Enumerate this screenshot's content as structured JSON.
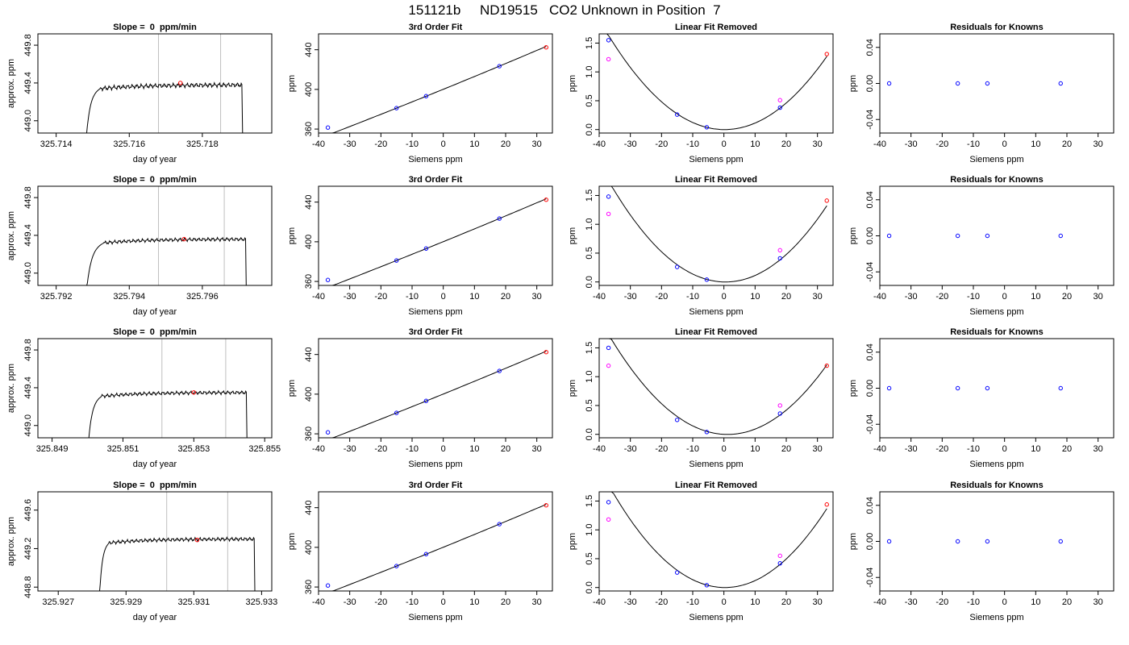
{
  "suptitle": "151121b     ND19515   CO2 Unknown in Position  7",
  "colors": {
    "known": "#0000ff",
    "unknown": "#ff0000",
    "alt": "#ff00ff",
    "line": "#000000",
    "vline": "#bfbfbf"
  },
  "chart_data": [
    {
      "type": "line",
      "title": "Slope =  0  ppm/min",
      "xlabel": "day of year",
      "ylabel": "approx. ppm",
      "xlim": [
        325.7135,
        325.7199
      ],
      "ylim": [
        448.87,
        449.92
      ],
      "xticks": [
        "325.714",
        "325.716",
        "325.718"
      ],
      "xtick_values": [
        325.714,
        325.716,
        325.718
      ],
      "yticks": [
        "449.0",
        "449.4",
        "449.8"
      ],
      "ytick_values": [
        449.0,
        449.4,
        449.8
      ],
      "trace": {
        "x_start": 325.7148,
        "x_end": 325.7191,
        "rise_end": 325.7152,
        "level": 449.38,
        "amp": 0.025
      },
      "vlines": [
        325.7168,
        325.7185
      ],
      "points": [
        {
          "x": 325.7174,
          "y": 449.4,
          "color": "unknown"
        }
      ]
    },
    {
      "type": "scatter",
      "title": "3rd Order Fit",
      "xlabel": "Siemens ppm",
      "ylabel": "ppm",
      "xlim": [
        -40,
        35
      ],
      "ylim": [
        356,
        456
      ],
      "xticks": [
        "-40",
        "-30",
        "-20",
        "-10",
        "0",
        "10",
        "20",
        "30"
      ],
      "xtick_values": [
        -40,
        -30,
        -20,
        -10,
        0,
        10,
        20,
        30
      ],
      "yticks": [
        "360",
        "400",
        "440"
      ],
      "ytick_values": [
        360,
        400,
        440
      ],
      "curve": {
        "kind": "poly",
        "coef": [
          400.1,
          1.28,
          0.0009
        ],
        "x0": -37,
        "x1": 33
      },
      "points": [
        {
          "x": -37,
          "y": 361.5,
          "color": "known"
        },
        {
          "x": -15,
          "y": 381.1,
          "color": "known"
        },
        {
          "x": -5.5,
          "y": 393.2,
          "color": "known"
        },
        {
          "x": 18,
          "y": 423.4,
          "color": "known"
        },
        {
          "x": 33,
          "y": 442.4,
          "color": "unknown"
        }
      ]
    },
    {
      "type": "scatter",
      "title": "Linear Fit Removed",
      "xlabel": "Siemens ppm",
      "ylabel": "ppm",
      "xlim": [
        -40,
        35
      ],
      "ylim": [
        -0.06,
        1.66
      ],
      "xticks": [
        "-40",
        "-30",
        "-20",
        "-10",
        "0",
        "10",
        "20",
        "30"
      ],
      "xtick_values": [
        -40,
        -30,
        -20,
        -10,
        0,
        10,
        20,
        30
      ],
      "yticks": [
        "0.0",
        "0.5",
        "1.0",
        "1.5"
      ],
      "ytick_values": [
        0,
        0.5,
        1,
        1.5
      ],
      "curve": {
        "kind": "poly",
        "coef": [
          0,
          -0.0005,
          0.00118
        ],
        "x0": -38.2,
        "x1": 33
      },
      "points": [
        {
          "x": -37,
          "y": 1.55,
          "color": "known"
        },
        {
          "x": -37,
          "y": 1.22,
          "color": "alt"
        },
        {
          "x": -15,
          "y": 0.26,
          "color": "known"
        },
        {
          "x": -5.5,
          "y": 0.04,
          "color": "known"
        },
        {
          "x": 18,
          "y": 0.38,
          "color": "known"
        },
        {
          "x": 18,
          "y": 0.51,
          "color": "alt"
        },
        {
          "x": 33,
          "y": 1.31,
          "color": "unknown"
        }
      ]
    },
    {
      "type": "scatter",
      "title": "Residuals for Knowns",
      "xlabel": "Siemens ppm",
      "ylabel": "ppm",
      "xlim": [
        -40,
        35
      ],
      "ylim": [
        -0.055,
        0.055
      ],
      "xticks": [
        "-40",
        "-30",
        "-20",
        "-10",
        "0",
        "10",
        "20",
        "30"
      ],
      "xtick_values": [
        -40,
        -30,
        -20,
        -10,
        0,
        10,
        20,
        30
      ],
      "yticks": [
        "-0.04",
        "0.00",
        "0.04"
      ],
      "ytick_values": [
        -0.04,
        0,
        0.04
      ],
      "points": [
        {
          "x": -37,
          "y": 0,
          "color": "known"
        },
        {
          "x": -15,
          "y": 0,
          "color": "known"
        },
        {
          "x": -5.5,
          "y": 0,
          "color": "known"
        },
        {
          "x": 18,
          "y": 0,
          "color": "known"
        }
      ]
    },
    {
      "type": "line",
      "title": "Slope =  0  ppm/min",
      "xlabel": "day of year",
      "ylabel": "approx. ppm",
      "xlim": [
        325.7915,
        325.7979
      ],
      "ylim": [
        448.87,
        449.92
      ],
      "xticks": [
        "325.792",
        "325.794",
        "325.796"
      ],
      "xtick_values": [
        325.792,
        325.794,
        325.796
      ],
      "yticks": [
        "449.0",
        "449.4",
        "449.8"
      ],
      "ytick_values": [
        449.0,
        449.4,
        449.8
      ],
      "trace": {
        "x_start": 325.7928,
        "x_end": 325.7972,
        "rise_end": 325.7933,
        "level": 449.36,
        "amp": 0.02
      },
      "vlines": [
        325.7948,
        325.7966
      ],
      "points": [
        {
          "x": 325.7955,
          "y": 449.36,
          "color": "unknown"
        }
      ]
    },
    {
      "type": "scatter",
      "title": "3rd Order Fit",
      "xlabel": "Siemens ppm",
      "ylabel": "ppm",
      "xlim": [
        -40,
        35
      ],
      "ylim": [
        356,
        456
      ],
      "xticks": [
        "-40",
        "-30",
        "-20",
        "-10",
        "0",
        "10",
        "20",
        "30"
      ],
      "xtick_values": [
        -40,
        -30,
        -20,
        -10,
        0,
        10,
        20,
        30
      ],
      "yticks": [
        "360",
        "400",
        "440"
      ],
      "ytick_values": [
        360,
        400,
        440
      ],
      "curve": {
        "kind": "poly",
        "coef": [
          400.1,
          1.28,
          0.0009
        ],
        "x0": -37,
        "x1": 33
      },
      "points": [
        {
          "x": -37,
          "y": 361.5,
          "color": "known"
        },
        {
          "x": -15,
          "y": 381.1,
          "color": "known"
        },
        {
          "x": -5.5,
          "y": 393.2,
          "color": "known"
        },
        {
          "x": 18,
          "y": 423.4,
          "color": "known"
        },
        {
          "x": 33,
          "y": 442.4,
          "color": "unknown"
        }
      ]
    },
    {
      "type": "scatter",
      "title": "Linear Fit Removed",
      "xlabel": "Siemens ppm",
      "ylabel": "ppm",
      "xlim": [
        -40,
        35
      ],
      "ylim": [
        -0.06,
        1.66
      ],
      "xticks": [
        "-40",
        "-30",
        "-20",
        "-10",
        "0",
        "10",
        "20",
        "30"
      ],
      "xtick_values": [
        -40,
        -30,
        -20,
        -10,
        0,
        10,
        20,
        30
      ],
      "yticks": [
        "0.0",
        "0.5",
        "1.0",
        "1.5"
      ],
      "ytick_values": [
        0,
        0.5,
        1,
        1.5
      ],
      "curve": {
        "kind": "poly",
        "coef": [
          0,
          -0.0012,
          0.00125
        ],
        "x0": -38.2,
        "x1": 33
      },
      "points": [
        {
          "x": -37,
          "y": 1.48,
          "color": "known"
        },
        {
          "x": -37,
          "y": 1.18,
          "color": "alt"
        },
        {
          "x": -15,
          "y": 0.26,
          "color": "known"
        },
        {
          "x": -5.5,
          "y": 0.04,
          "color": "known"
        },
        {
          "x": 18,
          "y": 0.41,
          "color": "known"
        },
        {
          "x": 18,
          "y": 0.55,
          "color": "alt"
        },
        {
          "x": 33,
          "y": 1.41,
          "color": "unknown"
        }
      ]
    },
    {
      "type": "scatter",
      "title": "Residuals for Knowns",
      "xlabel": "Siemens ppm",
      "ylabel": "ppm",
      "xlim": [
        -40,
        35
      ],
      "ylim": [
        -0.055,
        0.055
      ],
      "xticks": [
        "-40",
        "-30",
        "-20",
        "-10",
        "0",
        "10",
        "20",
        "30"
      ],
      "xtick_values": [
        -40,
        -30,
        -20,
        -10,
        0,
        10,
        20,
        30
      ],
      "yticks": [
        "-0.04",
        "0.00",
        "0.04"
      ],
      "ytick_values": [
        -0.04,
        0,
        0.04
      ],
      "points": [
        {
          "x": -37,
          "y": 0,
          "color": "known"
        },
        {
          "x": -15,
          "y": 0,
          "color": "known"
        },
        {
          "x": -5.5,
          "y": 0,
          "color": "known"
        },
        {
          "x": 18,
          "y": 0,
          "color": "known"
        }
      ]
    },
    {
      "type": "line",
      "title": "Slope =  0  ppm/min",
      "xlabel": "day of year",
      "ylabel": "approx. ppm",
      "xlim": [
        325.8486,
        325.8552
      ],
      "ylim": [
        448.87,
        449.92
      ],
      "xticks": [
        "325.849",
        "325.851",
        "325.853",
        "325.855"
      ],
      "xtick_values": [
        325.849,
        325.851,
        325.853,
        325.855
      ],
      "yticks": [
        "449.0",
        "449.4",
        "449.8"
      ],
      "ytick_values": [
        449.0,
        449.4,
        449.8
      ],
      "trace": {
        "x_start": 325.85,
        "x_end": 325.8545,
        "rise_end": 325.8504,
        "level": 449.35,
        "amp": 0.02
      },
      "vlines": [
        325.8521,
        325.8539
      ],
      "points": [
        {
          "x": 325.853,
          "y": 449.35,
          "color": "unknown"
        }
      ]
    },
    {
      "type": "scatter",
      "title": "3rd Order Fit",
      "xlabel": "Siemens ppm",
      "ylabel": "ppm",
      "xlim": [
        -40,
        35
      ],
      "ylim": [
        356,
        456
      ],
      "xticks": [
        "-40",
        "-30",
        "-20",
        "-10",
        "0",
        "10",
        "20",
        "30"
      ],
      "xtick_values": [
        -40,
        -30,
        -20,
        -10,
        0,
        10,
        20,
        30
      ],
      "yticks": [
        "360",
        "400",
        "440"
      ],
      "ytick_values": [
        360,
        400,
        440
      ],
      "curve": {
        "kind": "poly",
        "coef": [
          400.1,
          1.28,
          0.0009
        ],
        "x0": -37,
        "x1": 33
      },
      "points": [
        {
          "x": -37,
          "y": 361.5,
          "color": "known"
        },
        {
          "x": -15,
          "y": 381.1,
          "color": "known"
        },
        {
          "x": -5.5,
          "y": 393.2,
          "color": "known"
        },
        {
          "x": 18,
          "y": 423.4,
          "color": "known"
        },
        {
          "x": 33,
          "y": 442.4,
          "color": "unknown"
        }
      ]
    },
    {
      "type": "scatter",
      "title": "Linear Fit Removed",
      "xlabel": "Siemens ppm",
      "ylabel": "ppm",
      "xlim": [
        -40,
        35
      ],
      "ylim": [
        -0.06,
        1.66
      ],
      "xticks": [
        "-40",
        "-30",
        "-20",
        "-10",
        "0",
        "10",
        "20",
        "30"
      ],
      "xtick_values": [
        -40,
        -30,
        -20,
        -10,
        0,
        10,
        20,
        30
      ],
      "yticks": [
        "0.0",
        "0.5",
        "1.0",
        "1.5"
      ],
      "ytick_values": [
        0,
        0.5,
        1,
        1.5
      ],
      "curve": {
        "kind": "poly",
        "coef": [
          0,
          -0.0028,
          0.00119
        ],
        "x0": -38.2,
        "x1": 33
      },
      "points": [
        {
          "x": -37,
          "y": 1.5,
          "color": "known"
        },
        {
          "x": -37,
          "y": 1.19,
          "color": "alt"
        },
        {
          "x": -15,
          "y": 0.25,
          "color": "known"
        },
        {
          "x": -5.5,
          "y": 0.04,
          "color": "known"
        },
        {
          "x": 18,
          "y": 0.36,
          "color": "known"
        },
        {
          "x": 18,
          "y": 0.5,
          "color": "alt"
        },
        {
          "x": 33,
          "y": 1.19,
          "color": "unknown"
        }
      ]
    },
    {
      "type": "scatter",
      "title": "Residuals for Knowns",
      "xlabel": "Siemens ppm",
      "ylabel": "ppm",
      "xlim": [
        -40,
        35
      ],
      "ylim": [
        -0.055,
        0.055
      ],
      "xticks": [
        "-40",
        "-30",
        "-20",
        "-10",
        "0",
        "10",
        "20",
        "30"
      ],
      "xtick_values": [
        -40,
        -30,
        -20,
        -10,
        0,
        10,
        20,
        30
      ],
      "yticks": [
        "-0.04",
        "0.00",
        "0.04"
      ],
      "ytick_values": [
        -0.04,
        0,
        0.04
      ],
      "points": [
        {
          "x": -37,
          "y": 0,
          "color": "known"
        },
        {
          "x": -15,
          "y": 0,
          "color": "known"
        },
        {
          "x": -5.5,
          "y": 0,
          "color": "known"
        },
        {
          "x": 18,
          "y": 0,
          "color": "known"
        }
      ]
    },
    {
      "type": "line",
      "title": "Slope =  0  ppm/min",
      "xlabel": "day of year",
      "ylabel": "approx. ppm",
      "xlim": [
        325.9264,
        325.9333
      ],
      "ylim": [
        448.76,
        449.79
      ],
      "xticks": [
        "325.927",
        "325.929",
        "325.931",
        "325.933"
      ],
      "xtick_values": [
        325.927,
        325.929,
        325.931,
        325.933
      ],
      "yticks": [
        "448.8",
        "449.2",
        "449.6"
      ],
      "ytick_values": [
        448.8,
        449.2,
        449.6
      ],
      "trace": {
        "x_start": 325.9282,
        "x_end": 325.9328,
        "rise_end": 325.9285,
        "level": 449.3,
        "amp": 0.02
      },
      "vlines": [
        325.9302,
        325.932
      ],
      "points": [
        {
          "x": 325.9311,
          "y": 449.29,
          "color": "unknown"
        }
      ]
    },
    {
      "type": "scatter",
      "title": "3rd Order Fit",
      "xlabel": "Siemens ppm",
      "ylabel": "ppm",
      "xlim": [
        -40,
        35
      ],
      "ylim": [
        356,
        456
      ],
      "xticks": [
        "-40",
        "-30",
        "-20",
        "-10",
        "0",
        "10",
        "20",
        "30"
      ],
      "xtick_values": [
        -40,
        -30,
        -20,
        -10,
        0,
        10,
        20,
        30
      ],
      "yticks": [
        "360",
        "400",
        "440"
      ],
      "ytick_values": [
        360,
        400,
        440
      ],
      "curve": {
        "kind": "poly",
        "coef": [
          400.1,
          1.28,
          0.0009
        ],
        "x0": -37,
        "x1": 33
      },
      "points": [
        {
          "x": -37,
          "y": 361.5,
          "color": "known"
        },
        {
          "x": -15,
          "y": 381.1,
          "color": "known"
        },
        {
          "x": -5.5,
          "y": 393.2,
          "color": "known"
        },
        {
          "x": 18,
          "y": 423.4,
          "color": "known"
        },
        {
          "x": 33,
          "y": 442.4,
          "color": "unknown"
        }
      ]
    },
    {
      "type": "scatter",
      "title": "Linear Fit Removed",
      "xlabel": "Siemens ppm",
      "ylabel": "ppm",
      "xlim": [
        -40,
        35
      ],
      "ylim": [
        -0.06,
        1.66
      ],
      "xticks": [
        "-40",
        "-30",
        "-20",
        "-10",
        "0",
        "10",
        "20",
        "30"
      ],
      "xtick_values": [
        -40,
        -30,
        -20,
        -10,
        0,
        10,
        20,
        30
      ],
      "yticks": [
        "0.0",
        "0.5",
        "1.0",
        "1.5"
      ],
      "ytick_values": [
        0,
        0.5,
        1,
        1.5
      ],
      "curve": {
        "kind": "poly",
        "coef": [
          0,
          -0.0008,
          0.00128
        ],
        "x0": -38.2,
        "x1": 33
      },
      "points": [
        {
          "x": -37,
          "y": 1.48,
          "color": "known"
        },
        {
          "x": -37,
          "y": 1.18,
          "color": "alt"
        },
        {
          "x": -15,
          "y": 0.26,
          "color": "known"
        },
        {
          "x": -5.5,
          "y": 0.04,
          "color": "known"
        },
        {
          "x": 18,
          "y": 0.42,
          "color": "known"
        },
        {
          "x": 18,
          "y": 0.55,
          "color": "alt"
        },
        {
          "x": 33,
          "y": 1.44,
          "color": "unknown"
        }
      ]
    },
    {
      "type": "scatter",
      "title": "Residuals for Knowns",
      "xlabel": "Siemens ppm",
      "ylabel": "ppm",
      "xlim": [
        -40,
        35
      ],
      "ylim": [
        -0.055,
        0.055
      ],
      "xticks": [
        "-40",
        "-30",
        "-20",
        "-10",
        "0",
        "10",
        "20",
        "30"
      ],
      "xtick_values": [
        -40,
        -30,
        -20,
        -10,
        0,
        10,
        20,
        30
      ],
      "yticks": [
        "-0.04",
        "0.00",
        "0.04"
      ],
      "ytick_values": [
        -0.04,
        0,
        0.04
      ],
      "points": [
        {
          "x": -37,
          "y": 0,
          "color": "known"
        },
        {
          "x": -15,
          "y": 0,
          "color": "known"
        },
        {
          "x": -5.5,
          "y": 0,
          "color": "known"
        },
        {
          "x": 18,
          "y": 0,
          "color": "known"
        }
      ]
    }
  ]
}
